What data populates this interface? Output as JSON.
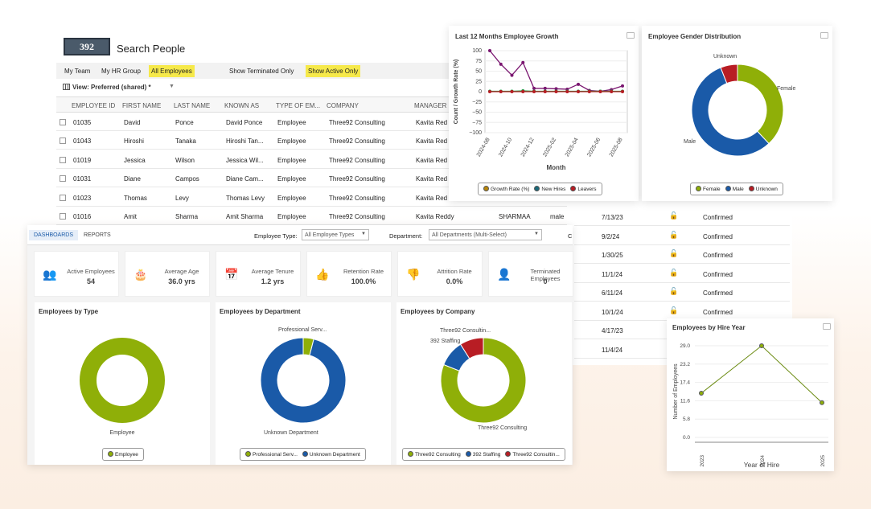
{
  "app": {
    "logo": "392",
    "title": "Search People"
  },
  "filters": {
    "tabs": [
      "My Team",
      "My HR Group",
      "All Employees"
    ],
    "terminated": "Show Terminated Only",
    "active": "Show Active Only"
  },
  "view": {
    "label": "View: Preferred (shared) *"
  },
  "table": {
    "headers": [
      "EMPLOYEE ID",
      "FIRST NAME",
      "LAST NAME",
      "KNOWN AS",
      "TYPE OF EM...",
      "COMPANY",
      "MANAGER"
    ],
    "rows": [
      [
        "01035",
        "David",
        "Ponce",
        "David Ponce",
        "Employee",
        "Three92 Consulting",
        "Kavita Red"
      ],
      [
        "01043",
        "Hiroshi",
        "Tanaka",
        "Hiroshi Tan...",
        "Employee",
        "Three92 Consulting",
        "Kavita Red"
      ],
      [
        "01019",
        "Jessica",
        "Wilson",
        "Jessica Wil...",
        "Employee",
        "Three92 Consulting",
        "Kavita Red"
      ],
      [
        "01031",
        "Diane",
        "Campos",
        "Diane Cam...",
        "Employee",
        "Three92 Consulting",
        "Kavita Red"
      ],
      [
        "01023",
        "Thomas",
        "Levy",
        "Thomas Levy",
        "Employee",
        "Three92 Consulting",
        "Kavita Red"
      ],
      [
        "01016",
        "Amit",
        "Sharma",
        "Amit Sharma",
        "Employee",
        "Three92 Consulting",
        "Kavita Reddy"
      ]
    ],
    "extra": {
      "username": "SHARMAA",
      "gender": "male"
    }
  },
  "right_rows": [
    [
      "7/13/23",
      "Confirmed"
    ],
    [
      "9/2/24",
      "Confirmed"
    ],
    [
      "1/30/25",
      "Confirmed"
    ],
    [
      "11/1/24",
      "Confirmed"
    ],
    [
      "6/11/24",
      "Confirmed"
    ],
    [
      "10/1/24",
      "Confirmed"
    ],
    [
      "4/17/23",
      "Confirmed"
    ],
    [
      "11/4/24",
      "Confirmed"
    ]
  ],
  "dash": {
    "tabs": [
      "DASHBOARDS",
      "REPORTS"
    ],
    "emp_type_label": "Employee Type:",
    "emp_type_value": "All Employee Types",
    "dept_label": "Department:",
    "dept_value": "All Departments (Multi-Select)",
    "trailing": "C"
  },
  "kpis": [
    {
      "label": "Active Employees",
      "value": "54",
      "icon": "people-icon",
      "color": "#2e86de"
    },
    {
      "label": "Average Age",
      "value": "36.0 yrs",
      "icon": "cake-icon",
      "color": "#8e44ad"
    },
    {
      "label": "Average Tenure",
      "value": "1.2 yrs",
      "icon": "calendar-check-icon",
      "color": "#1e5aa8"
    },
    {
      "label": "Retention Rate",
      "value": "100.0%",
      "icon": "thumbs-up-icon",
      "color": "#27ae60"
    },
    {
      "label": "Attrition Rate",
      "value": "0.0%",
      "icon": "thumbs-down-icon",
      "color": "#c0392b"
    },
    {
      "label": "Terminated Employees",
      "value": "0",
      "icon": "user-x-icon",
      "color": "#c0392b"
    }
  ],
  "colors": {
    "olive": "#8faf08",
    "blue": "#1a5aa8",
    "red": "#b81d24",
    "purple": "#7a1670",
    "green": "#1f8f3a",
    "teal": "#1a6a7a"
  },
  "chart_data": [
    {
      "type": "line",
      "title": "Last 12 Months Employee Growth",
      "xlabel": "Month",
      "ylabel": "Count / Growth Rate (%)",
      "x": [
        "2024-08",
        "2024-09",
        "2024-10",
        "2024-11",
        "2024-12",
        "2025-01",
        "2025-02",
        "2025-03",
        "2025-04",
        "2025-05",
        "2025-06",
        "2025-07",
        "2025-08"
      ],
      "xticks": [
        "2024-08",
        "2024-10",
        "2024-12",
        "2025-02",
        "2025-04",
        "2025-06",
        "2025-08"
      ],
      "ylim": [
        -100,
        100
      ],
      "yticks": [
        "100",
        "75",
        "50",
        "25",
        "0",
        "−25",
        "−50",
        "−75",
        "−100"
      ],
      "series": [
        {
          "name": "Growth Rate (%)",
          "values": [
            100,
            67,
            40,
            71,
            8,
            8,
            7,
            6,
            18,
            3,
            1,
            5,
            14
          ]
        },
        {
          "name": "New Hires",
          "values": [
            1,
            1,
            1,
            2,
            1,
            1,
            1,
            1,
            1,
            1,
            1,
            1,
            1
          ]
        },
        {
          "name": "Leavers",
          "values": [
            0,
            0,
            0,
            0,
            0,
            0,
            0,
            0,
            0,
            0,
            0,
            0,
            0
          ]
        }
      ]
    },
    {
      "type": "pie",
      "title": "Employee Gender Distribution",
      "labels": [
        "Female",
        "Male",
        "Unknown"
      ],
      "values": [
        38,
        56,
        6
      ]
    },
    {
      "type": "pie",
      "title": "Employees by Type",
      "labels": [
        "Employee"
      ],
      "values": [
        100
      ]
    },
    {
      "type": "pie",
      "title": "Employees by Department",
      "labels": [
        "Professional Serv...",
        "Unknown Department"
      ],
      "values": [
        4,
        96
      ],
      "legend": [
        "Professional Serv...",
        "Unknown Department"
      ],
      "annot": [
        "Professional Serv...",
        "Unknown Department"
      ]
    },
    {
      "type": "pie",
      "title": "Employees by Company",
      "labels": [
        "Three92 Consulting",
        "392 Staffing",
        "Three92 Consultin..."
      ],
      "values": [
        81,
        10,
        9
      ],
      "annot": [
        "Three92 Consultin...",
        "392 Staffing",
        "Three92 Consulting"
      ]
    },
    {
      "type": "line",
      "title": "Employees by Hire Year",
      "xlabel": "Year of Hire",
      "ylabel": "Number of Employees",
      "x": [
        "2023",
        "2024",
        "2025"
      ],
      "values": [
        14,
        29,
        11
      ],
      "ylim": [
        0,
        29
      ],
      "yticks": [
        "29.0",
        "23.2",
        "17.4",
        "11.6",
        "5.8",
        "0.0"
      ]
    }
  ]
}
